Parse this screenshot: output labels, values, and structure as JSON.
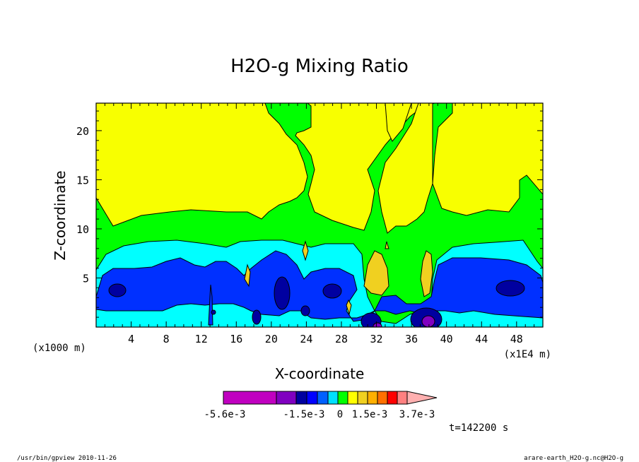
{
  "chart_data": {
    "type": "heatmap",
    "title": "H2O-g Mixing Ratio",
    "xlabel": "X-coordinate",
    "ylabel": "Z-coordinate",
    "x_unit_left": "(x1000 m)",
    "x_unit_right": "(x1E4 m)",
    "xlim": [
      0,
      51
    ],
    "ylim": [
      0,
      22.8
    ],
    "x_ticks": [
      4,
      8,
      12,
      16,
      20,
      24,
      28,
      32,
      36,
      40,
      44,
      48
    ],
    "y_ticks": [
      5,
      10,
      15,
      20
    ],
    "grid": false,
    "colorbar": {
      "labels": [
        "-5.6e-3",
        "-1.5e-3",
        "0",
        "1.5e-3",
        "3.7e-3"
      ],
      "colors": [
        "#c000c0",
        "#8000c0",
        "#0000a0",
        "#0000ff",
        "#0060ff",
        "#00e0ff",
        "#00ff00",
        "#ffff00",
        "#f0d020",
        "#ffb000",
        "#ff7000",
        "#ff0000",
        "#ff8080",
        "#ffb0b0"
      ]
    },
    "fields": {
      "background": "#00ff00",
      "regions": [
        {
          "level": "yellow",
          "color": "#f8ff00"
        },
        {
          "level": "cyan",
          "color": "#00ffff"
        },
        {
          "level": "blue",
          "color": "#0030ff"
        },
        {
          "level": "navy",
          "color": "#0000a0"
        },
        {
          "level": "purple",
          "color": "#8000c0"
        },
        {
          "level": "orange-yellow",
          "color": "#f0d020"
        }
      ]
    },
    "time_label": "t=142200 s"
  },
  "footer": {
    "left": "/usr/bin/gpview   2010-11-26",
    "right": "arare-earth_H2O-g.nc@H2O-g"
  }
}
